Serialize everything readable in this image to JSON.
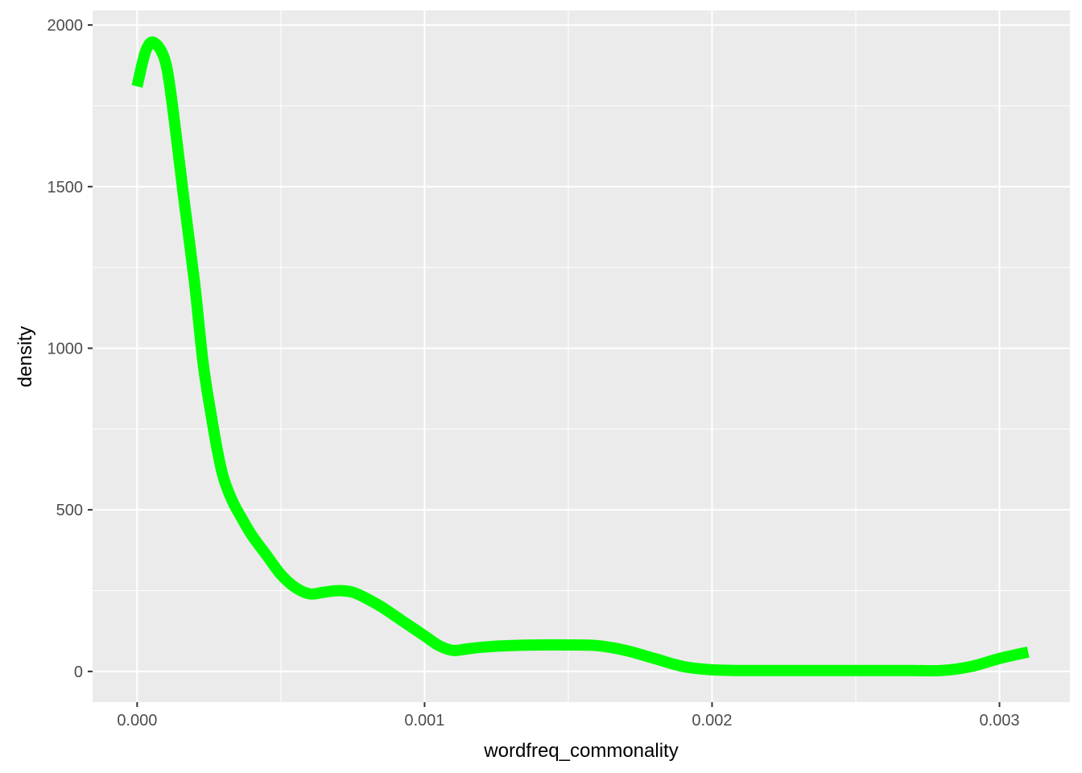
{
  "chart_data": {
    "type": "line",
    "title": "",
    "xlabel": "wordfreq_commonality",
    "ylabel": "density",
    "xlim": [
      -0.000155,
      0.003245
    ],
    "ylim": [
      -95,
      2045
    ],
    "x_ticks": [
      {
        "value": 0.0,
        "label": "0.000"
      },
      {
        "value": 0.001,
        "label": "0.001"
      },
      {
        "value": 0.002,
        "label": "0.002"
      },
      {
        "value": 0.003,
        "label": "0.003"
      }
    ],
    "y_ticks": [
      {
        "value": 0,
        "label": "0"
      },
      {
        "value": 500,
        "label": "500"
      },
      {
        "value": 1000,
        "label": "1000"
      },
      {
        "value": 1500,
        "label": "1500"
      },
      {
        "value": 2000,
        "label": "2000"
      }
    ],
    "grid": true,
    "colors": {
      "panel": "#ebebeb",
      "grid": "#ffffff",
      "line": "#00ff00"
    },
    "series": [
      {
        "x": [
          0.0,
          3e-05,
          6e-05,
          0.0001,
          0.00013,
          0.00016,
          0.0002,
          0.00023,
          0.00026,
          0.00028,
          0.0003,
          0.00033,
          0.00036,
          0.0004,
          0.00045,
          0.0005,
          0.00055,
          0.0006,
          0.00065,
          0.0007,
          0.00075,
          0.0008,
          0.00085,
          0.0009,
          0.00095,
          0.001,
          0.00105,
          0.0011,
          0.00115,
          0.0012,
          0.0013,
          0.0014,
          0.0015,
          0.0016,
          0.0017,
          0.0018,
          0.0019,
          0.002,
          0.0021,
          0.0022,
          0.0023,
          0.0024,
          0.0025,
          0.0026,
          0.0027,
          0.0028,
          0.0029,
          0.003,
          0.0031
        ],
        "y": [
          1810,
          1920,
          1945,
          1880,
          1700,
          1480,
          1200,
          950,
          780,
          680,
          600,
          530,
          480,
          420,
          360,
          300,
          260,
          240,
          245,
          250,
          245,
          225,
          200,
          170,
          140,
          110,
          80,
          65,
          70,
          75,
          80,
          82,
          82,
          80,
          65,
          40,
          15,
          5,
          3,
          3,
          3,
          3,
          3,
          3,
          3,
          3,
          15,
          40,
          60
        ]
      }
    ]
  }
}
